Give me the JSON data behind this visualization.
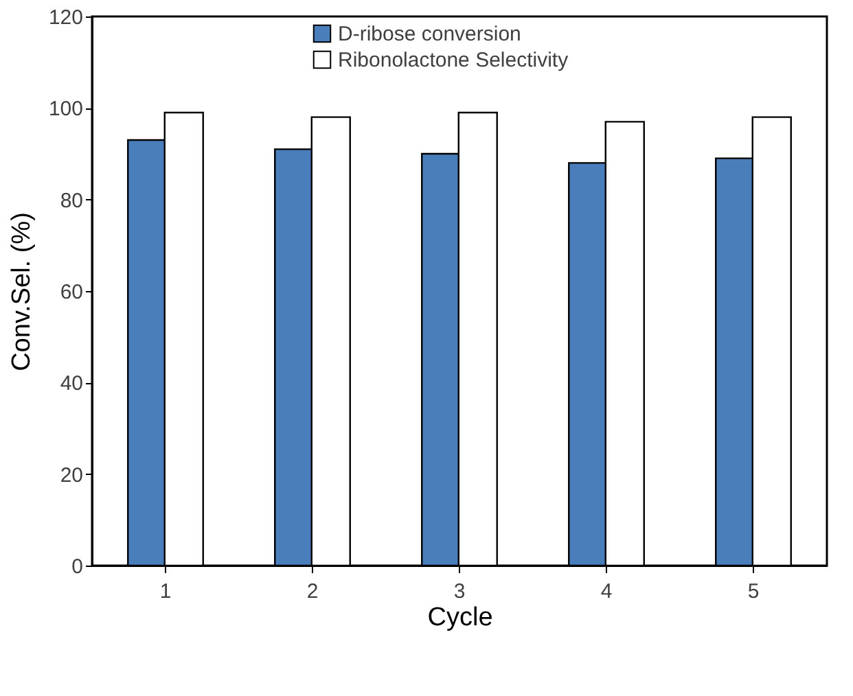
{
  "chart_data": {
    "type": "bar",
    "xlabel": "Cycle",
    "ylabel": "Conv.Sel. (%)",
    "categories": [
      "1",
      "2",
      "3",
      "4",
      "5"
    ],
    "series": [
      {
        "name": "D-ribose conversion",
        "color": "#4a7ebb",
        "values": [
          93,
          91,
          90,
          88,
          89
        ]
      },
      {
        "name": "Ribonolactone Selectivity",
        "color": "#ffffff",
        "values": [
          99,
          98,
          99,
          97,
          98
        ]
      }
    ],
    "ylim": [
      0,
      120
    ],
    "yticks": [
      0,
      20,
      40,
      60,
      80,
      100,
      120
    ],
    "grid": false,
    "legend": "top"
  }
}
